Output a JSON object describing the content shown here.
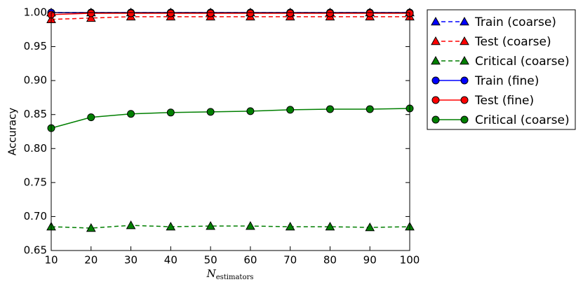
{
  "chart_data": {
    "type": "line",
    "xlabel": "N",
    "xlabel_subscript": "estimators",
    "ylabel": "Accuracy",
    "x": [
      10,
      20,
      30,
      40,
      50,
      60,
      70,
      80,
      90,
      100
    ],
    "xlim": [
      10,
      100
    ],
    "xticks": [
      10,
      20,
      30,
      40,
      50,
      60,
      70,
      80,
      90,
      100
    ],
    "ylim": [
      0.65,
      1.0
    ],
    "yticks": [
      0.65,
      {
        "value": 0.7,
        "label": "0.70"
      },
      0.75,
      {
        "value": 0.8,
        "label": "0.80"
      },
      0.85,
      {
        "value": 0.9,
        "label": "0.90"
      },
      0.95,
      {
        "value": 1.0,
        "label": "1.00"
      }
    ],
    "grid": false,
    "legend": "outside upper right",
    "series": [
      {
        "name": "Train (coarse)",
        "color": "#0000ff",
        "marker": "triangle",
        "dashed": true,
        "values": [
          1.0,
          1.0,
          1.0,
          1.0,
          1.0,
          1.0,
          1.0,
          1.0,
          1.0,
          1.0
        ]
      },
      {
        "name": "Test (coarse)",
        "color": "#ff0000",
        "marker": "triangle",
        "dashed": true,
        "values": [
          0.99,
          0.992,
          0.994,
          0.994,
          0.994,
          0.994,
          0.994,
          0.994,
          0.994,
          0.994
        ]
      },
      {
        "name": "Critical (coarse)",
        "color": "#007f00",
        "marker": "triangle",
        "dashed": true,
        "values": [
          0.685,
          0.683,
          0.687,
          0.685,
          0.686,
          0.686,
          0.685,
          0.685,
          0.684,
          0.685
        ]
      },
      {
        "name": "Train (fine)",
        "color": "#0000ff",
        "marker": "circle",
        "dashed": false,
        "values": [
          1.0,
          1.0,
          1.0,
          1.0,
          1.0,
          1.0,
          1.0,
          1.0,
          1.0,
          1.0
        ]
      },
      {
        "name": "Test (fine)",
        "color": "#ff0000",
        "marker": "circle",
        "dashed": false,
        "values": [
          0.997,
          0.999,
          0.999,
          0.999,
          0.999,
          0.999,
          0.999,
          0.999,
          0.999,
          0.999
        ]
      },
      {
        "name": "Critical (coarse)",
        "color": "#007f00",
        "marker": "circle",
        "dashed": false,
        "values": [
          0.83,
          0.846,
          0.851,
          0.853,
          0.854,
          0.855,
          0.857,
          0.858,
          0.858,
          0.859
        ]
      }
    ]
  }
}
